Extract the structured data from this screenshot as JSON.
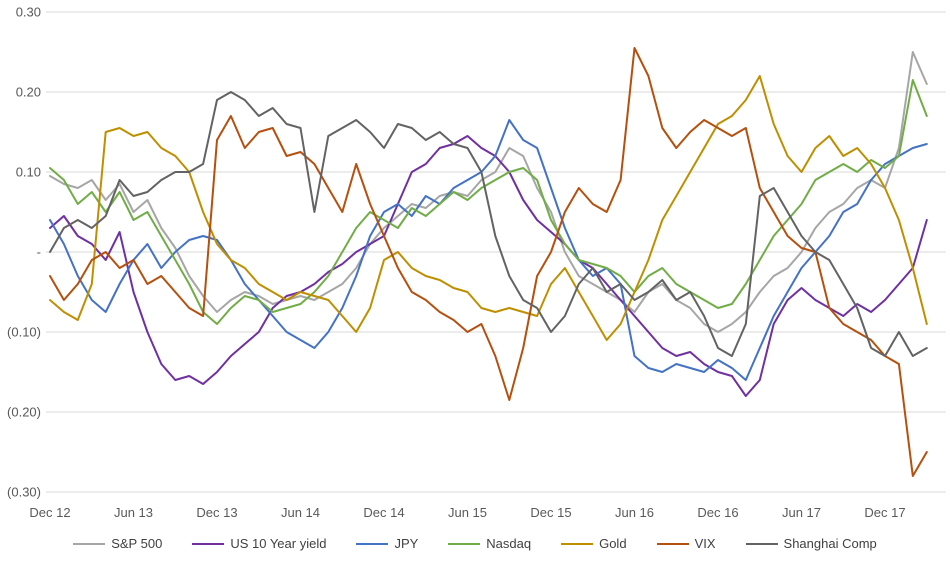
{
  "page": {
    "background_color": "#ffffff",
    "gridline_color": "#d9d9d9",
    "axis_label_color": "#595959",
    "legend_text_color": "#404040"
  },
  "chart_data": {
    "type": "line",
    "title": "",
    "xlabel": "",
    "ylabel": "",
    "grid": true,
    "legend_position": "bottom",
    "ylim": [
      -0.33,
      0.31
    ],
    "y_ticks": [
      {
        "value": 0.3,
        "label": "0.30"
      },
      {
        "value": 0.2,
        "label": "0.20"
      },
      {
        "value": 0.1,
        "label": "0.10"
      },
      {
        "value": 0.0,
        "label": "-"
      },
      {
        "value": -0.1,
        "label": "(0.10)"
      },
      {
        "value": -0.2,
        "label": "(0.20)"
      },
      {
        "value": -0.3,
        "label": "(0.30)"
      }
    ],
    "x_tick_labels": [
      "Dec 12",
      "Jun 13",
      "Dec 13",
      "Jun 14",
      "Dec 14",
      "Jun 15",
      "Dec 15",
      "Jun 16",
      "Dec 16",
      "Jun 17",
      "Dec 17"
    ],
    "x_start": "Dec 2012",
    "x_end": "Mar 2018",
    "x_label_every_n_points": 6,
    "sampling_note": "values are monthly estimates digitized from the plotted daily lines",
    "series": [
      {
        "id": "sp-500",
        "name": "S&P 500",
        "color": "#a6a6a6",
        "values": [
          0.095,
          0.085,
          0.08,
          0.09,
          0.065,
          0.085,
          0.05,
          0.065,
          0.03,
          0.005,
          -0.03,
          -0.055,
          -0.075,
          -0.06,
          -0.05,
          -0.055,
          -0.065,
          -0.06,
          -0.055,
          -0.06,
          -0.05,
          -0.04,
          -0.02,
          0.01,
          0.03,
          0.045,
          0.06,
          0.055,
          0.07,
          0.075,
          0.07,
          0.09,
          0.1,
          0.13,
          0.12,
          0.08,
          0.05,
          0.0,
          -0.03,
          -0.04,
          -0.05,
          -0.06,
          -0.075,
          -0.05,
          -0.04,
          -0.06,
          -0.07,
          -0.09,
          -0.1,
          -0.09,
          -0.075,
          -0.05,
          -0.03,
          -0.02,
          0.0,
          0.03,
          0.05,
          0.06,
          0.08,
          0.09,
          0.08,
          0.13,
          0.25,
          0.21
        ]
      },
      {
        "id": "us-10-year-yield",
        "name": "US 10 Year yield",
        "color": "#7030a0",
        "values": [
          0.03,
          0.045,
          0.02,
          0.01,
          -0.01,
          0.025,
          -0.05,
          -0.1,
          -0.14,
          -0.16,
          -0.155,
          -0.165,
          -0.15,
          -0.13,
          -0.115,
          -0.1,
          -0.07,
          -0.055,
          -0.05,
          -0.04,
          -0.025,
          -0.015,
          0.0,
          0.01,
          0.02,
          0.06,
          0.1,
          0.11,
          0.13,
          0.135,
          0.145,
          0.13,
          0.12,
          0.1,
          0.065,
          0.04,
          0.025,
          0.01,
          -0.01,
          -0.02,
          -0.04,
          -0.06,
          -0.08,
          -0.1,
          -0.12,
          -0.13,
          -0.125,
          -0.14,
          -0.15,
          -0.155,
          -0.18,
          -0.16,
          -0.09,
          -0.06,
          -0.045,
          -0.06,
          -0.07,
          -0.08,
          -0.065,
          -0.075,
          -0.06,
          -0.04,
          -0.02,
          0.04
        ]
      },
      {
        "id": "jpy",
        "name": "JPY",
        "color": "#4472c4",
        "values": [
          0.04,
          0.01,
          -0.03,
          -0.06,
          -0.075,
          -0.04,
          -0.01,
          0.01,
          -0.02,
          0.0,
          0.015,
          0.02,
          0.015,
          -0.01,
          -0.04,
          -0.06,
          -0.08,
          -0.1,
          -0.11,
          -0.12,
          -0.1,
          -0.07,
          -0.03,
          0.02,
          0.05,
          0.06,
          0.045,
          0.07,
          0.06,
          0.08,
          0.09,
          0.1,
          0.12,
          0.165,
          0.14,
          0.13,
          0.08,
          0.03,
          -0.01,
          -0.03,
          -0.02,
          -0.04,
          -0.13,
          -0.145,
          -0.15,
          -0.14,
          -0.145,
          -0.15,
          -0.135,
          -0.145,
          -0.16,
          -0.12,
          -0.08,
          -0.05,
          -0.02,
          0.0,
          0.02,
          0.05,
          0.06,
          0.09,
          0.11,
          0.12,
          0.13,
          0.135
        ]
      },
      {
        "id": "nasdaq",
        "name": "Nasdaq",
        "color": "#70ad47",
        "values": [
          0.105,
          0.09,
          0.06,
          0.075,
          0.05,
          0.075,
          0.04,
          0.05,
          0.02,
          -0.01,
          -0.04,
          -0.075,
          -0.09,
          -0.07,
          -0.055,
          -0.06,
          -0.075,
          -0.07,
          -0.065,
          -0.05,
          -0.03,
          0.0,
          0.03,
          0.05,
          0.04,
          0.03,
          0.055,
          0.045,
          0.06,
          0.075,
          0.065,
          0.08,
          0.09,
          0.1,
          0.105,
          0.09,
          0.04,
          0.01,
          -0.01,
          -0.015,
          -0.02,
          -0.03,
          -0.05,
          -0.03,
          -0.02,
          -0.04,
          -0.05,
          -0.06,
          -0.07,
          -0.065,
          -0.04,
          -0.01,
          0.02,
          0.04,
          0.06,
          0.09,
          0.1,
          0.11,
          0.1,
          0.115,
          0.105,
          0.12,
          0.215,
          0.17
        ]
      },
      {
        "id": "gold",
        "name": "Gold",
        "color": "#bf8f00",
        "values": [
          -0.06,
          -0.075,
          -0.085,
          -0.04,
          0.15,
          0.155,
          0.145,
          0.15,
          0.13,
          0.12,
          0.1,
          0.05,
          0.01,
          -0.01,
          -0.02,
          -0.04,
          -0.05,
          -0.06,
          -0.05,
          -0.055,
          -0.06,
          -0.08,
          -0.1,
          -0.07,
          -0.01,
          0.0,
          -0.02,
          -0.03,
          -0.035,
          -0.045,
          -0.05,
          -0.07,
          -0.075,
          -0.07,
          -0.075,
          -0.08,
          -0.04,
          -0.02,
          -0.05,
          -0.08,
          -0.11,
          -0.09,
          -0.05,
          -0.01,
          0.04,
          0.07,
          0.1,
          0.13,
          0.16,
          0.17,
          0.19,
          0.22,
          0.16,
          0.12,
          0.1,
          0.13,
          0.145,
          0.12,
          0.13,
          0.11,
          0.08,
          0.04,
          -0.02,
          -0.09
        ]
      },
      {
        "id": "vix",
        "name": "VIX",
        "color": "#b5500f",
        "values": [
          -0.03,
          -0.06,
          -0.04,
          -0.01,
          0.0,
          -0.02,
          -0.01,
          -0.04,
          -0.03,
          -0.05,
          -0.07,
          -0.08,
          0.14,
          0.17,
          0.13,
          0.15,
          0.155,
          0.12,
          0.125,
          0.11,
          0.08,
          0.05,
          0.11,
          0.06,
          0.02,
          -0.02,
          -0.05,
          -0.06,
          -0.075,
          -0.085,
          -0.1,
          -0.09,
          -0.13,
          -0.185,
          -0.12,
          -0.03,
          0.0,
          0.05,
          0.08,
          0.06,
          0.05,
          0.09,
          0.255,
          0.22,
          0.155,
          0.13,
          0.15,
          0.165,
          0.155,
          0.145,
          0.155,
          0.08,
          0.05,
          0.02,
          0.005,
          0.0,
          -0.07,
          -0.09,
          -0.1,
          -0.11,
          -0.13,
          -0.14,
          -0.28,
          -0.25
        ]
      },
      {
        "id": "shanghai-comp",
        "name": "Shanghai Comp",
        "color": "#636363",
        "values": [
          0.0,
          0.03,
          0.04,
          0.03,
          0.045,
          0.09,
          0.07,
          0.075,
          0.09,
          0.1,
          0.1,
          0.11,
          0.19,
          0.2,
          0.19,
          0.17,
          0.18,
          0.16,
          0.155,
          0.05,
          0.145,
          0.155,
          0.165,
          0.15,
          0.13,
          0.16,
          0.155,
          0.14,
          0.15,
          0.135,
          0.13,
          0.1,
          0.02,
          -0.03,
          -0.06,
          -0.07,
          -0.1,
          -0.08,
          -0.04,
          -0.02,
          -0.05,
          -0.04,
          -0.06,
          -0.05,
          -0.035,
          -0.06,
          -0.05,
          -0.08,
          -0.12,
          -0.13,
          -0.09,
          0.07,
          0.08,
          0.05,
          0.02,
          0.0,
          -0.01,
          -0.04,
          -0.07,
          -0.12,
          -0.13,
          -0.1,
          -0.13,
          -0.12
        ]
      }
    ]
  }
}
